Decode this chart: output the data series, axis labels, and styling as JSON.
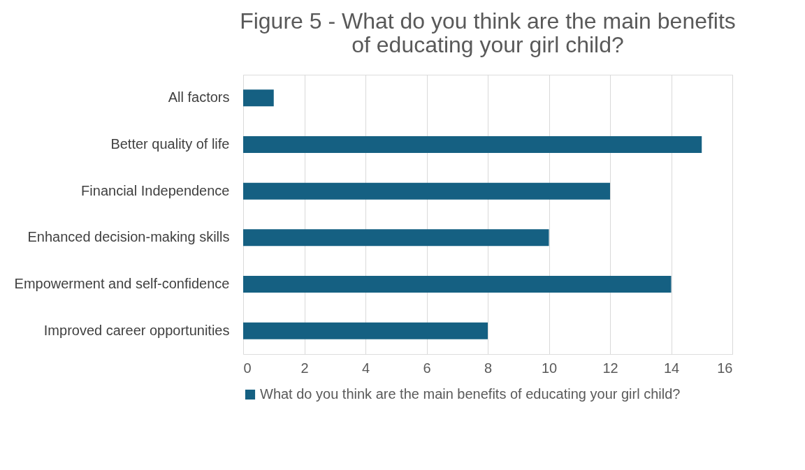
{
  "chart_data": {
    "type": "bar",
    "orientation": "horizontal",
    "title": "Figure 5 - What do you think are the main benefits of educating your girl child?",
    "categories": [
      "All factors",
      "Better quality of life",
      "Financial Independence",
      "Enhanced decision-making skills",
      "Empowerment and self-confidence",
      "Improved career opportunities"
    ],
    "series": [
      {
        "name": "What do you think are the main benefits of educating your girl child?",
        "color": "#156082",
        "values": [
          1,
          15,
          12,
          10,
          14,
          8
        ]
      }
    ],
    "xlim": [
      0,
      16
    ],
    "xticks": [
      0,
      2,
      4,
      6,
      8,
      10,
      12,
      14,
      16
    ],
    "grid": "x",
    "legend": "bottom"
  }
}
